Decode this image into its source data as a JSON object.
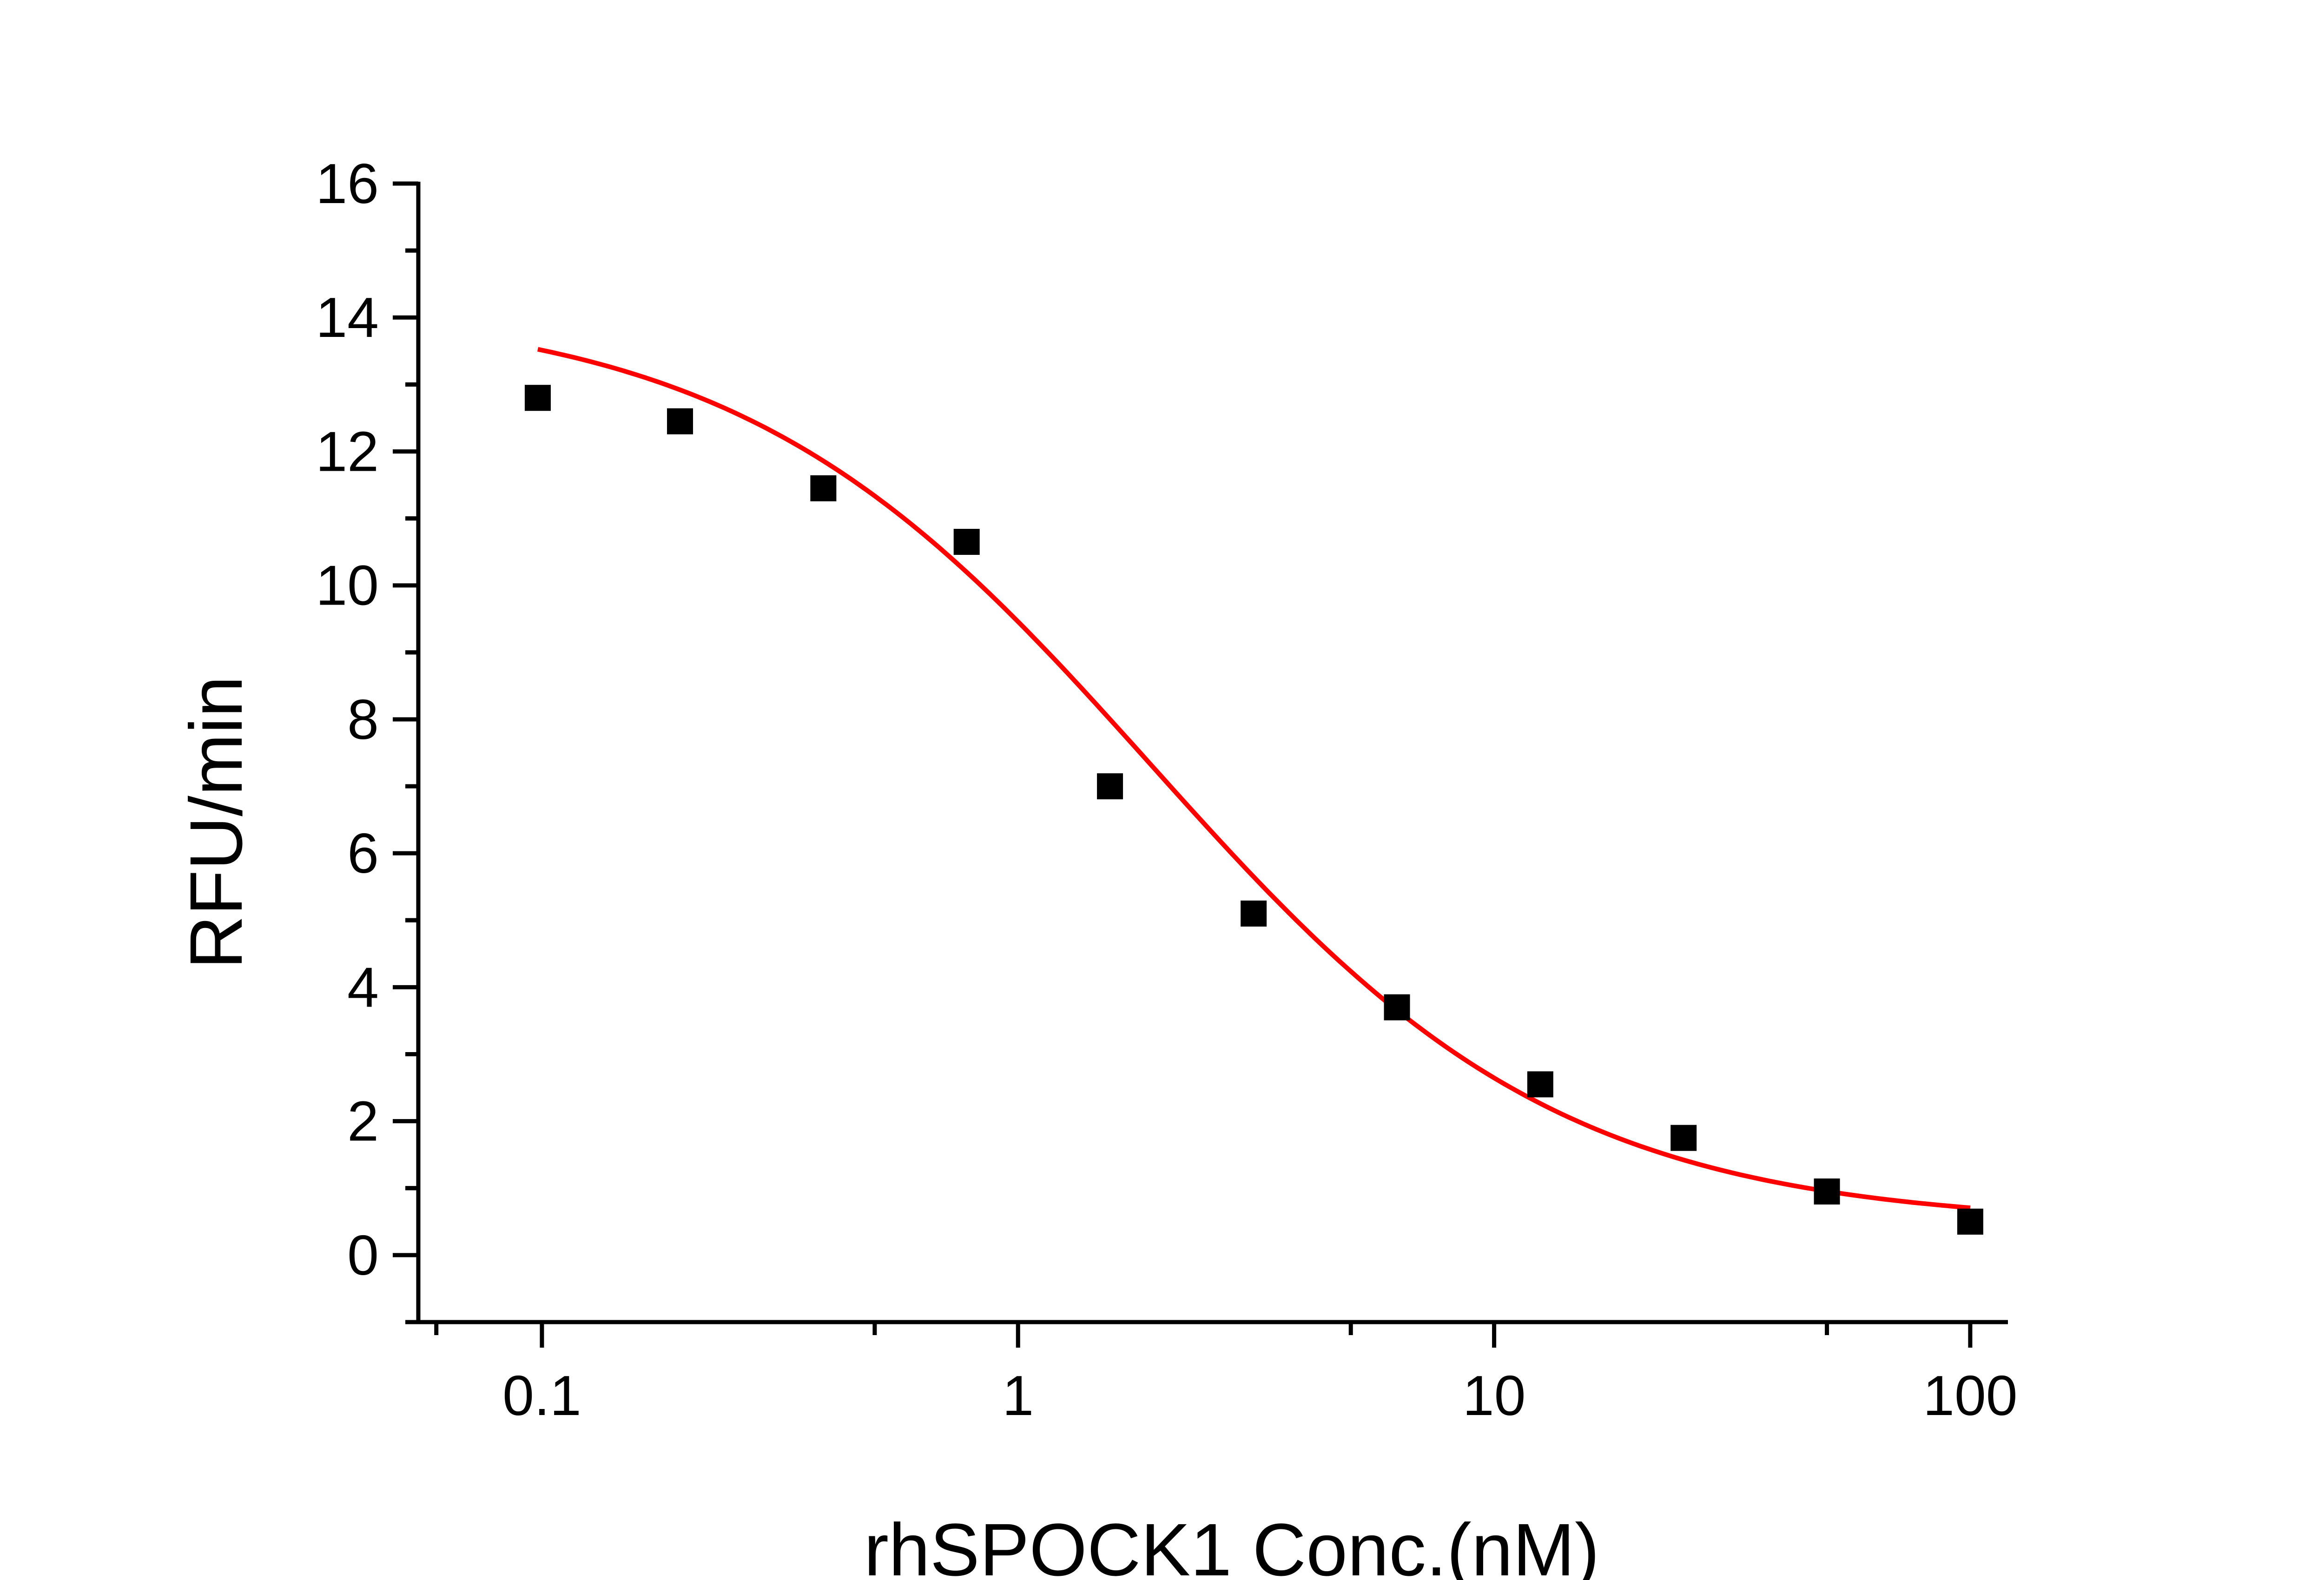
{
  "chart_data": {
    "type": "scatter",
    "title": "",
    "xlabel": "rhSPOCK1 Conc.(nM)",
    "ylabel": "RFU/min",
    "x_scale": "log",
    "xlim": [
      0.055,
      120
    ],
    "ylim": [
      -1,
      16
    ],
    "x_ticks": [
      0.1,
      1,
      10,
      100
    ],
    "x_tick_labels": [
      "0.1",
      "1",
      "10",
      "100"
    ],
    "y_ticks": [
      0,
      2,
      4,
      6,
      8,
      10,
      12,
      14,
      16
    ],
    "y_tick_labels": [
      "0",
      "2",
      "4",
      "6",
      "8",
      "10",
      "12",
      "14",
      "16"
    ],
    "grid": false,
    "legend": "none",
    "series": [
      {
        "kind": "points",
        "marker": "square",
        "color": "#000000",
        "x": [
          0.098,
          0.195,
          0.39,
          0.78,
          1.56,
          3.125,
          6.25,
          12.5,
          25,
          50,
          100
        ],
        "y": [
          12.8,
          12.45,
          11.45,
          10.65,
          7.0,
          5.1,
          3.7,
          2.55,
          1.75,
          0.95,
          0.5
        ]
      },
      {
        "kind": "fit",
        "color": "#ff0000",
        "model": "4PL",
        "top": 14.2,
        "bottom": 0.45,
        "ec50": 1.9,
        "hill": 1.0,
        "x_range": [
          0.098,
          100
        ]
      }
    ]
  }
}
